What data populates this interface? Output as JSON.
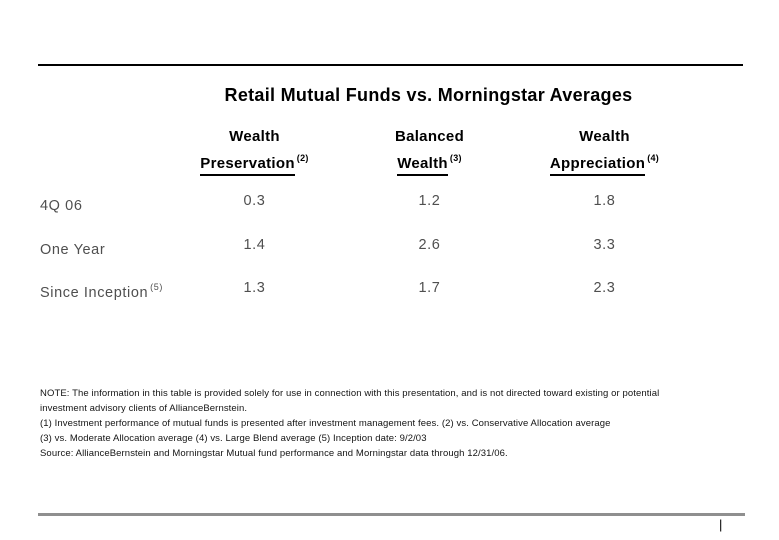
{
  "page": {
    "title": "Retail Mutual Funds vs. Morningstar Averages",
    "page_marker": "|"
  },
  "table": {
    "columns": [
      {
        "line1": "Wealth",
        "line2": "Preservation",
        "note_ref": "(2)"
      },
      {
        "line1": "Balanced",
        "line2": "Wealth",
        "note_ref": "(3)"
      },
      {
        "line1": "Wealth",
        "line2": "Appreciation",
        "note_ref": "(4)"
      }
    ],
    "rows": [
      {
        "label": "4Q 06",
        "note_ref": "",
        "values": [
          "0.3",
          "1.2",
          "1.8"
        ]
      },
      {
        "label": "One Year",
        "note_ref": "",
        "values": [
          "1.4",
          "2.6",
          "3.3"
        ]
      },
      {
        "label": "Since Inception",
        "note_ref": "(5)",
        "values": [
          "1.3",
          "1.7",
          "2.3"
        ]
      }
    ]
  },
  "footnotes": {
    "lines": [
      "NOTE:  The information in this table is provided solely for use in connection with this presentation, and is not directed toward existing or potential",
      "investment advisory clients of AllianceBernstein.",
      "(1) Investment performance of mutual funds is presented after investment management fees. (2) vs. Conservative Allocation average",
      "(3) vs. Moderate Allocation average (4) vs. Large Blend average (5) Inception date: 9/2/03",
      "Source: AllianceBernstein and Morningstar Mutual fund performance and Morningstar data through 12/31/06."
    ]
  },
  "colors": {
    "title_text": "#000000",
    "table_body_text": "#4f4f4f",
    "footnote_text": "#141414",
    "top_rule": "#000000",
    "bottom_rule": "#8f8f8f"
  },
  "chart_data": {
    "type": "table",
    "title": "Retail Mutual Funds vs. Morningstar Averages",
    "columns": [
      "",
      "Wealth Preservation (2)",
      "Balanced Wealth (3)",
      "Wealth Appreciation (4)"
    ],
    "rows": [
      [
        "4Q 06",
        0.3,
        1.2,
        1.8
      ],
      [
        "One Year",
        1.4,
        2.6,
        3.3
      ],
      [
        "Since Inception (5)",
        1.3,
        1.7,
        2.3
      ]
    ]
  }
}
